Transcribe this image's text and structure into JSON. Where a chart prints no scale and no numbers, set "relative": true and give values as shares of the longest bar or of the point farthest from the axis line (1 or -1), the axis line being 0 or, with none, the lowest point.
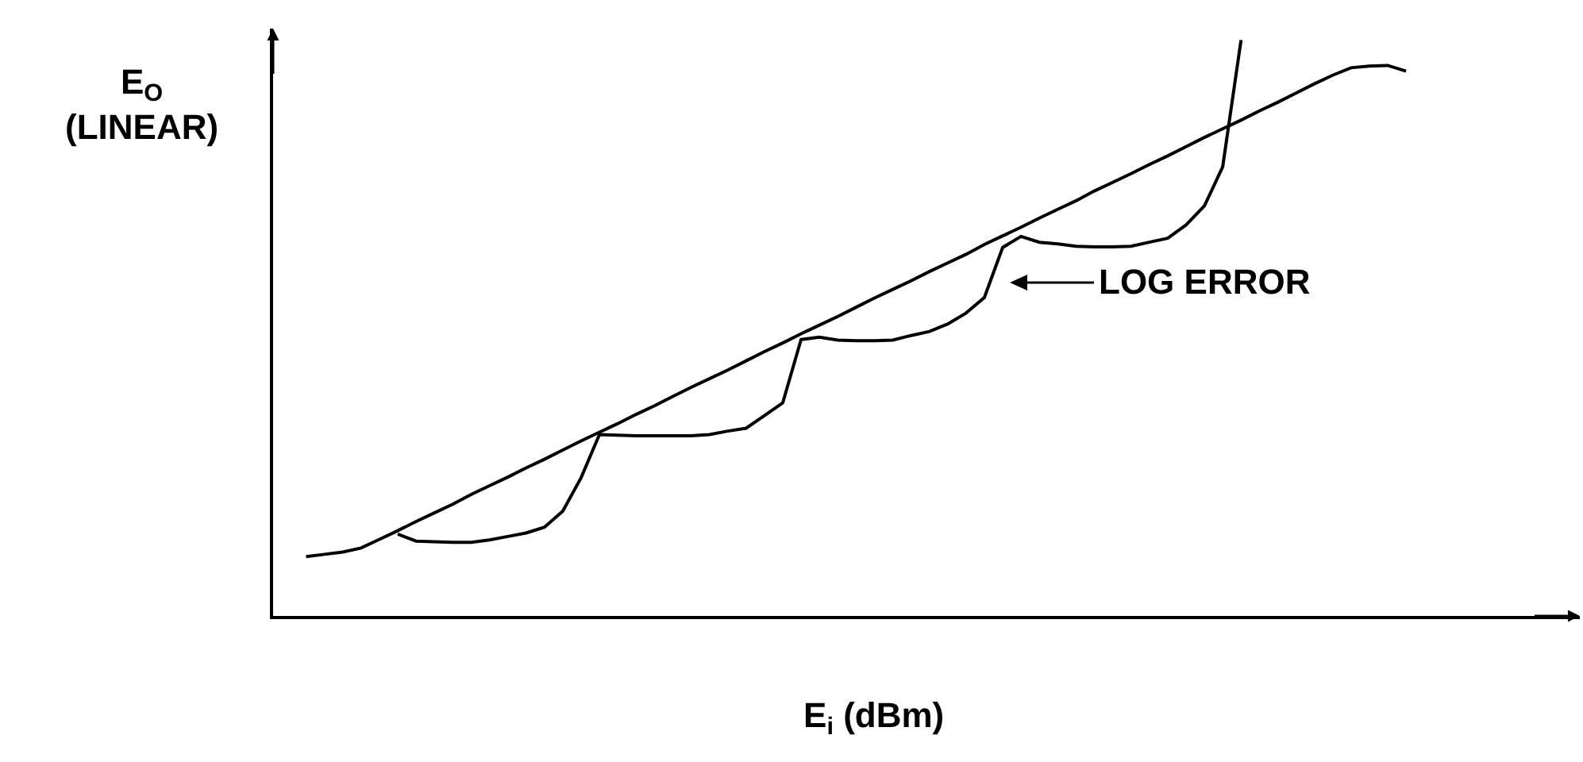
{
  "chart_data": {
    "type": "line",
    "relative": true,
    "xlabel": "E$_{i}$ (dBm)",
    "ylabel": "E$_{O}$\n(LINEAR)",
    "legend": false,
    "grid": false,
    "marker": "none",
    "line_style": "solid",
    "annotations": [
      "LOG ERROR"
    ],
    "categories": [
      null,
      null,
      null,
      null,
      null,
      null,
      null,
      null,
      null,
      null,
      null,
      null,
      null,
      null,
      null,
      null,
      null,
      null,
      null,
      null,
      null,
      null,
      null,
      null,
      null,
      null,
      null,
      null,
      null,
      null,
      null,
      null,
      null,
      null,
      null,
      null,
      null,
      null,
      null,
      null,
      null,
      null,
      null,
      null,
      null,
      null,
      null,
      null,
      null,
      null,
      null,
      null,
      null,
      null,
      null,
      null,
      null,
      null,
      null,
      null,
      null
    ],
    "series": [
      {
        "color": "#000000",
        "values": [
          0.103,
          0.107,
          0.111,
          0.118,
          0.133,
          0.148,
          0.164,
          0.179,
          0.194,
          0.211,
          0.226,
          0.241,
          0.257,
          0.272,
          0.288,
          0.304,
          0.319,
          0.334,
          0.35,
          0.365,
          0.381,
          0.397,
          0.412,
          0.427,
          0.443,
          0.459,
          0.474,
          0.49,
          0.505,
          0.52,
          0.536,
          0.552,
          0.567,
          0.582,
          0.598,
          0.613,
          0.628,
          0.645,
          0.66,
          0.675,
          0.691,
          0.706,
          0.721,
          0.738,
          0.753,
          0.768,
          0.784,
          0.799,
          0.815,
          0.831,
          0.846,
          0.861,
          0.877,
          0.892,
          0.908,
          0.924,
          0.939,
          0.952,
          0.955,
          0.956,
          0.946
        ]
      },
      {
        "color": "#000000",
        "values": [
          null,
          null,
          null,
          null,
          null,
          0.142,
          0.13,
          0.129,
          0.128,
          0.128,
          0.132,
          0.138,
          0.144,
          0.154,
          0.182,
          0.24,
          0.315,
          0.314,
          0.313,
          0.313,
          0.313,
          0.313,
          0.315,
          0.321,
          0.326,
          0.348,
          0.37,
          0.48,
          0.484,
          0.479,
          0.478,
          0.478,
          0.479,
          0.487,
          0.494,
          0.507,
          0.526,
          0.553,
          0.64,
          0.659,
          0.649,
          0.646,
          0.642,
          0.641,
          0.641,
          0.642,
          0.649,
          0.656,
          0.679,
          0.712,
          0.78,
          1.0,
          null,
          null,
          null,
          null,
          null,
          null,
          null,
          null,
          null
        ]
      }
    ]
  }
}
